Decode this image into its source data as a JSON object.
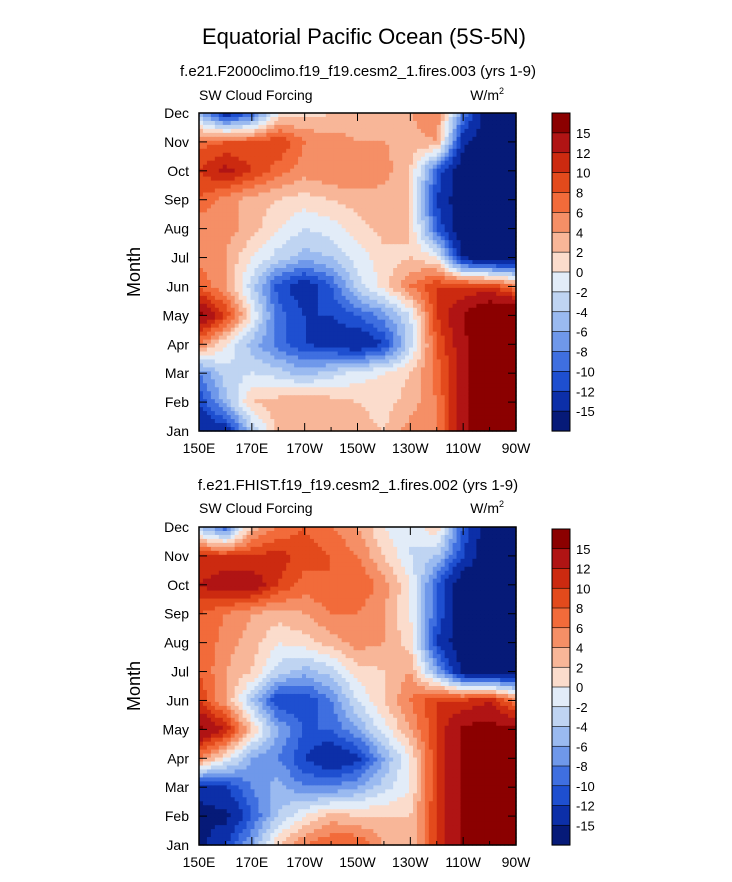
{
  "title": "Equatorial Pacific Ocean (5S-5N)",
  "colorbar_levels": [
    "15",
    "12",
    "10",
    "8",
    "6",
    "4",
    "2",
    "0",
    "-2",
    "-4",
    "-6",
    "-8",
    "-10",
    "-12",
    "-15"
  ],
  "colorbar_colors": [
    "#8b0000",
    "#b01414",
    "#cc2a10",
    "#e34a1c",
    "#f26b3a",
    "#f58f66",
    "#f8b698",
    "#fbdccc",
    "#e2ecf8",
    "#bfd4f2",
    "#9abaf0",
    "#6f98ea",
    "#3f6fe0",
    "#1e4fd0",
    "#0c2fa8",
    "#061a78"
  ],
  "chart_data": [
    {
      "type": "heatmap",
      "subtitle": "f.e21.F2000climo.f19_f19.cesm2_1.fires.003 (yrs 1-9)",
      "left_label": "SW Cloud Forcing",
      "units_label": "W/m",
      "units_sup": "2",
      "ylabel": "Month",
      "x_ticks": [
        "150E",
        "170E",
        "170W",
        "150W",
        "130W",
        "110W",
        "90W"
      ],
      "y_ticks": [
        "Jan",
        "Feb",
        "Mar",
        "Apr",
        "May",
        "Jun",
        "Jul",
        "Aug",
        "Sep",
        "Oct",
        "Nov",
        "Dec"
      ],
      "x_range_deg_east": [
        150,
        270
      ],
      "grid": [
        [
          -15,
          -14,
          -4,
          3,
          4,
          3,
          3,
          2,
          5,
          6,
          14,
          20,
          20
        ],
        [
          -12,
          -5,
          2,
          3,
          4,
          3,
          2,
          1,
          3,
          6,
          14,
          20,
          20
        ],
        [
          -8,
          -3,
          -2,
          -3,
          -5,
          -3,
          -1,
          0,
          2,
          7,
          14,
          20,
          20
        ],
        [
          6,
          0,
          -5,
          -9,
          -12,
          -13,
          -15,
          -12,
          -3,
          8,
          14,
          20,
          20
        ],
        [
          16,
          10,
          0,
          -9,
          -12,
          -12,
          -10,
          -7,
          -2,
          10,
          15,
          20,
          20
        ],
        [
          8,
          4,
          -3,
          -11,
          -14,
          -10,
          -3,
          1,
          6,
          10,
          10,
          10,
          6
        ],
        [
          5,
          4,
          0,
          -3,
          -5,
          -4,
          -1,
          1,
          2,
          0,
          -15,
          -18,
          -18
        ],
        [
          4,
          5,
          3,
          0,
          -2,
          -1,
          1,
          3,
          2,
          -10,
          -18,
          -18,
          -18
        ],
        [
          8,
          5,
          3,
          2,
          1,
          2,
          3,
          3,
          2,
          -12,
          -18,
          -18,
          -18
        ],
        [
          10,
          13,
          10,
          7,
          5,
          6,
          6,
          5,
          2,
          -10,
          -18,
          -18,
          -18
        ],
        [
          7,
          8,
          8,
          10,
          6,
          5,
          4,
          4,
          3,
          4,
          -14,
          -18,
          -18
        ],
        [
          -5,
          -14,
          -10,
          0,
          1,
          2,
          3,
          4,
          4,
          6,
          -8,
          -18,
          -18
        ]
      ]
    },
    {
      "type": "heatmap",
      "subtitle": "f.e21.FHIST.f19_f19.cesm2_1.fires.002 (yrs 1-9)",
      "left_label": "SW Cloud Forcing",
      "units_label": "W/m",
      "units_sup": "2",
      "ylabel": "Month",
      "x_ticks": [
        "150E",
        "170E",
        "170W",
        "150W",
        "130W",
        "110W",
        "90W"
      ],
      "y_ticks": [
        "Jan",
        "Feb",
        "Mar",
        "Apr",
        "May",
        "Jun",
        "Jul",
        "Aug",
        "Sep",
        "Oct",
        "Nov",
        "Dec"
      ],
      "x_range_deg_east": [
        150,
        270
      ],
      "grid": [
        [
          -16,
          -12,
          -6,
          2,
          6,
          8,
          8,
          4,
          2,
          10,
          16,
          20,
          20
        ],
        [
          -16,
          -16,
          -10,
          -4,
          0,
          3,
          2,
          2,
          2,
          10,
          16,
          20,
          20
        ],
        [
          -14,
          -12,
          -8,
          -5,
          -8,
          -8,
          -6,
          -3,
          0,
          10,
          16,
          20,
          20
        ],
        [
          6,
          0,
          -6,
          -8,
          -12,
          -15,
          -13,
          -6,
          0,
          10,
          16,
          20,
          20
        ],
        [
          16,
          12,
          2,
          -6,
          -10,
          -10,
          -6,
          -1,
          4,
          10,
          16,
          16,
          16
        ],
        [
          10,
          4,
          -4,
          -12,
          -12,
          -8,
          -2,
          2,
          6,
          10,
          10,
          12,
          6
        ],
        [
          8,
          4,
          2,
          -3,
          -5,
          -3,
          1,
          2,
          4,
          -6,
          -16,
          -18,
          -18
        ],
        [
          8,
          5,
          3,
          0,
          1,
          3,
          5,
          4,
          1,
          -12,
          -18,
          -18,
          -18
        ],
        [
          8,
          6,
          4,
          3,
          4,
          6,
          6,
          4,
          0,
          -10,
          -18,
          -18,
          -18
        ],
        [
          12,
          14,
          14,
          10,
          7,
          8,
          8,
          5,
          0,
          -10,
          -18,
          -18,
          -18
        ],
        [
          10,
          10,
          10,
          11,
          9,
          8,
          6,
          2,
          -2,
          -4,
          -12,
          -18,
          -18
        ],
        [
          -4,
          -10,
          3,
          6,
          8,
          6,
          4,
          0,
          -2,
          2,
          -10,
          -18,
          -18
        ]
      ]
    }
  ]
}
